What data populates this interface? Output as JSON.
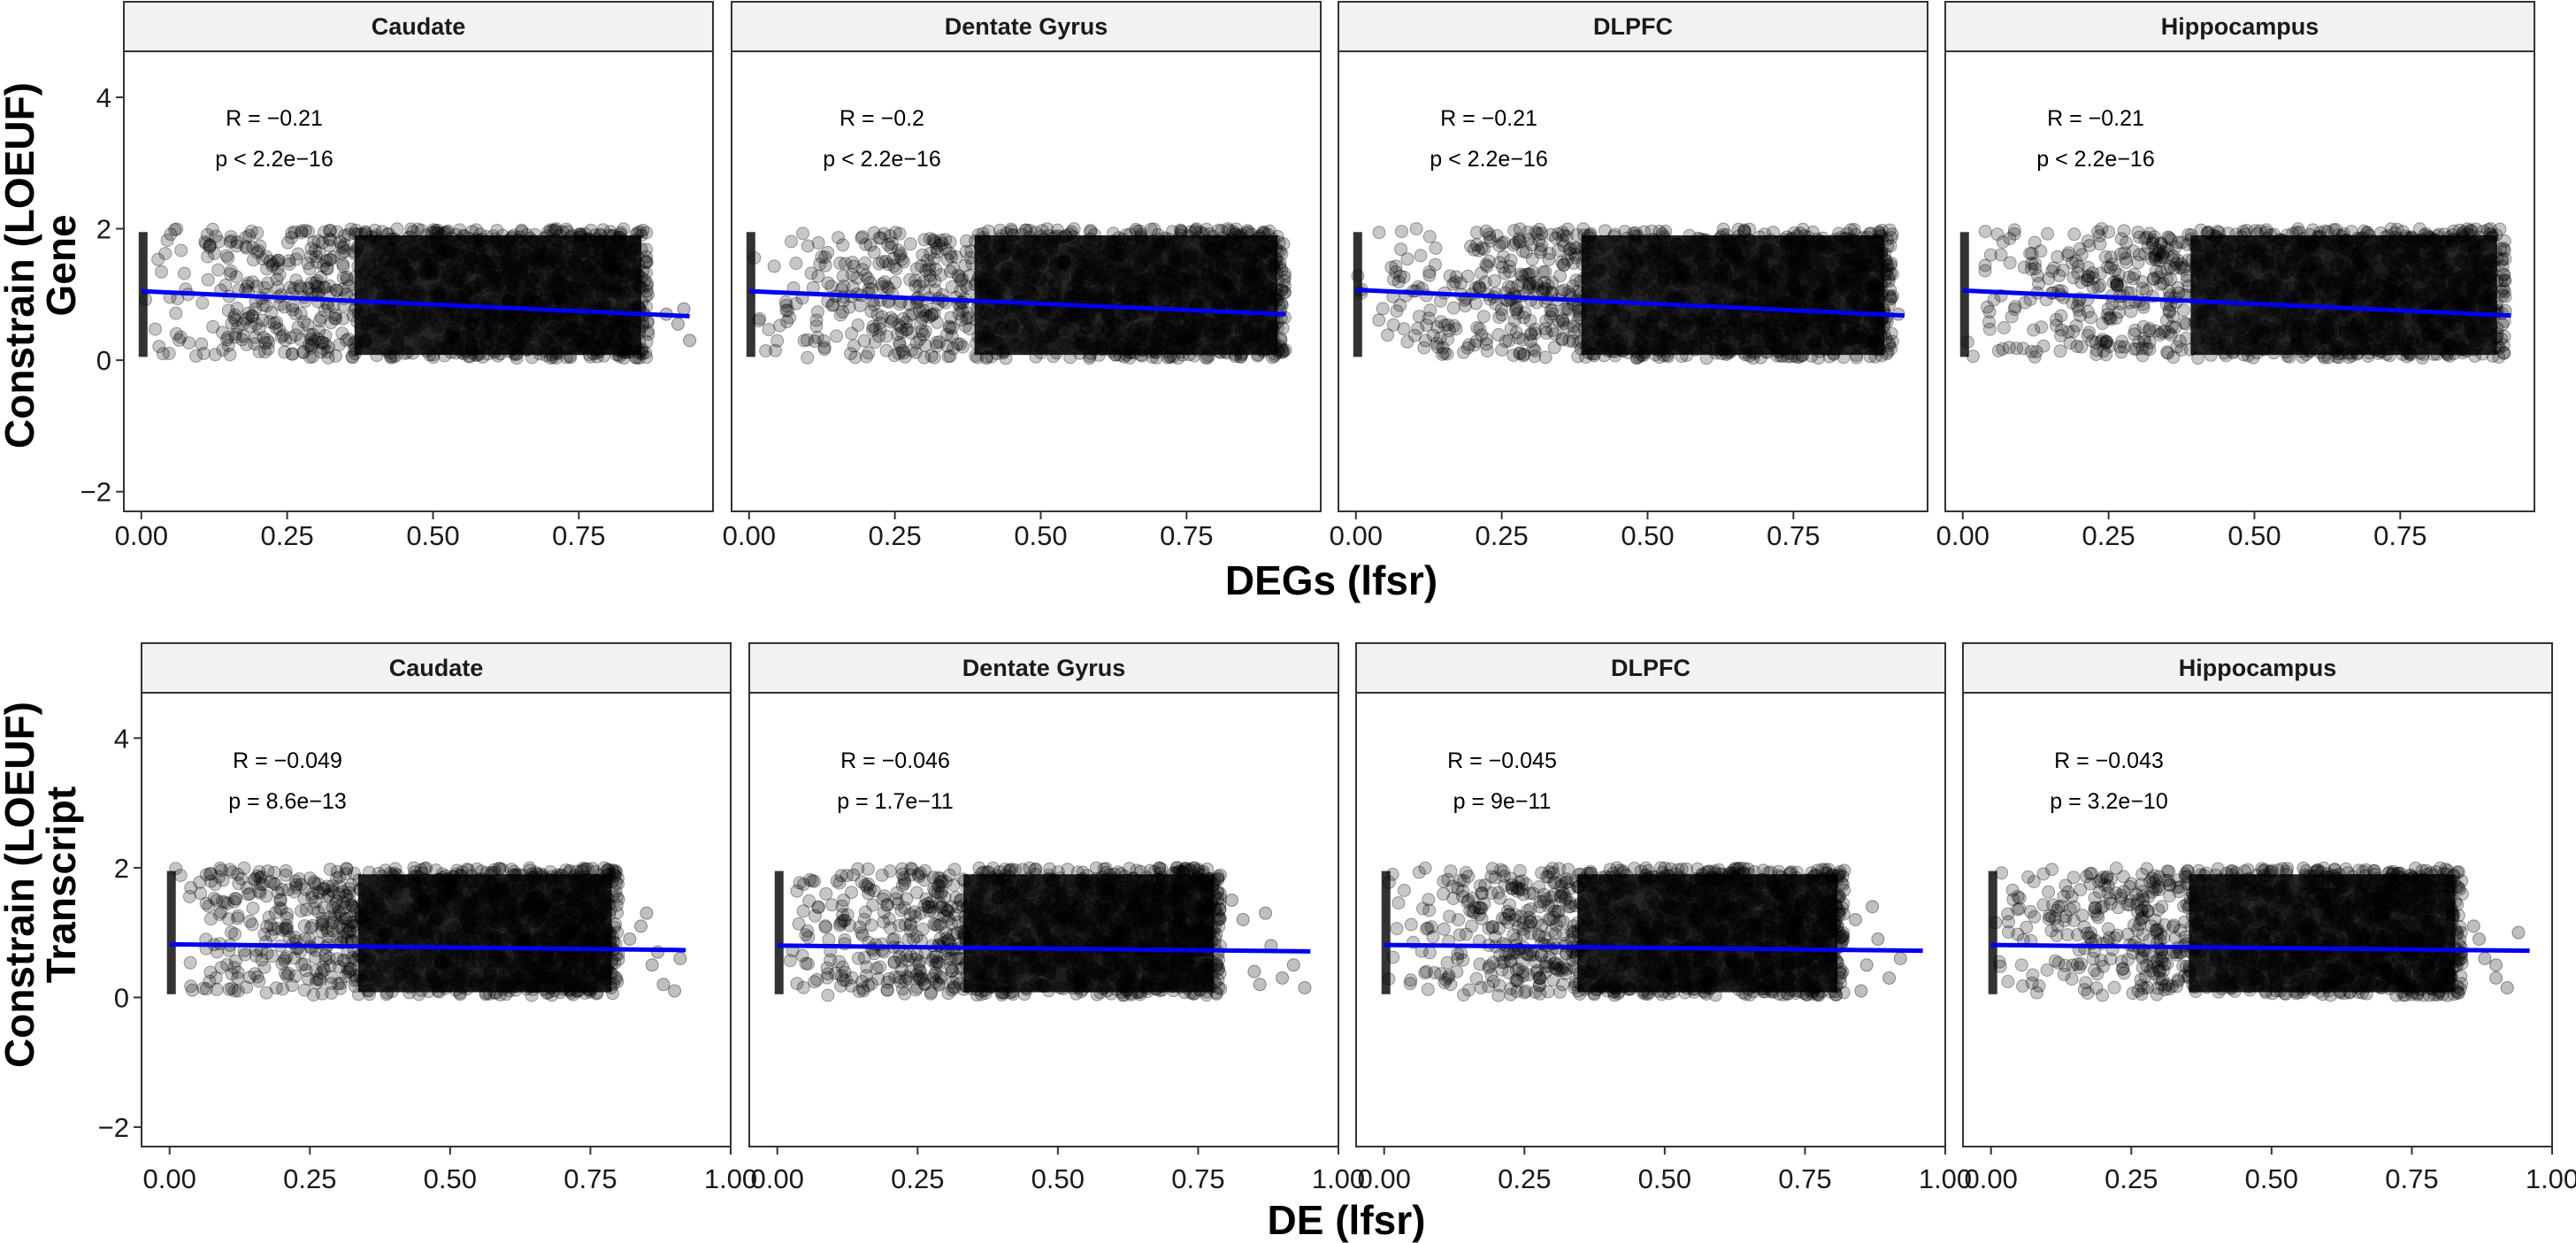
{
  "chart_data": {
    "type": "scatter",
    "panels": [
      {
        "row_label": "Gene",
        "xlabel": "DEGs (lfsr)",
        "ylabel": "Constrain (LOEUF)",
        "xlim": [
          -0.03,
          0.98
        ],
        "ylim": [
          -2.3,
          4.7
        ],
        "x_ticks": [
          "0.00",
          "0.25",
          "0.50",
          "0.75"
        ],
        "y_ticks": [
          "−2",
          "0",
          "2",
          "4"
        ],
        "facets": [
          {
            "title": "Caudate",
            "R": "R = −0.21",
            "p": "p < 2.2e−16",
            "x_max": 0.87,
            "trend": {
              "x0": 0.0,
              "y0": 1.05,
              "x1": 0.94,
              "y1": 0.67
            },
            "outliers": [
              [
                0.9,
                0.7
              ],
              [
                0.92,
                0.55
              ],
              [
                0.94,
                0.3
              ],
              [
                0.93,
                0.78
              ]
            ]
          },
          {
            "title": "Dentate Gyrus",
            "R": "R = −0.2",
            "p": "p < 2.2e−16",
            "x_max": 0.92,
            "trend": {
              "x0": 0.0,
              "y0": 1.05,
              "x1": 0.92,
              "y1": 0.7
            },
            "outliers": []
          },
          {
            "title": "DLPFC",
            "R": "R = −0.21",
            "p": "p < 2.2e−16",
            "x_max": 0.92,
            "trend": {
              "x0": 0.0,
              "y0": 1.07,
              "x1": 0.94,
              "y1": 0.68
            },
            "outliers": [
              [
                0.93,
                0.7
              ]
            ]
          },
          {
            "title": "Hippocampus",
            "R": "R = −0.21",
            "p": "p < 2.2e−16",
            "x_max": 0.93,
            "trend": {
              "x0": 0.0,
              "y0": 1.06,
              "x1": 0.94,
              "y1": 0.68
            },
            "outliers": [
              [
                0.93,
                0.75
              ]
            ]
          }
        ]
      },
      {
        "row_label": "Transcript",
        "xlabel": "DE (lfsr)",
        "ylabel": "Constrain (LOEUF)",
        "xlim": [
          -0.05,
          1.0
        ],
        "ylim": [
          -2.3,
          4.7
        ],
        "x_ticks": [
          "0.00",
          "0.25",
          "0.50",
          "0.75",
          "1.00"
        ],
        "y_ticks": [
          "−2",
          "0",
          "2",
          "4"
        ],
        "facets": [
          {
            "title": "Caudate",
            "R": "R = −0.049",
            "p": "p = 8.6e−13",
            "x_max": 0.8,
            "trend": {
              "x0": 0.0,
              "y0": 0.82,
              "x1": 0.92,
              "y1": 0.73
            },
            "outliers": [
              [
                0.82,
                0.9
              ],
              [
                0.84,
                1.1
              ],
              [
                0.86,
                0.5
              ],
              [
                0.88,
                0.2
              ],
              [
                0.9,
                0.1
              ],
              [
                0.91,
                0.6
              ],
              [
                0.85,
                1.3
              ],
              [
                0.87,
                0.7
              ]
            ]
          },
          {
            "title": "Dentate Gyrus",
            "R": "R = −0.046",
            "p": "p = 1.7e−11",
            "x_max": 0.79,
            "trend": {
              "x0": 0.0,
              "y0": 0.8,
              "x1": 0.95,
              "y1": 0.71
            },
            "outliers": [
              [
                0.81,
                1.5
              ],
              [
                0.83,
                1.2
              ],
              [
                0.85,
                0.4
              ],
              [
                0.87,
                1.3
              ],
              [
                0.9,
                0.3
              ],
              [
                0.92,
                0.5
              ],
              [
                0.94,
                0.15
              ],
              [
                0.88,
                0.8
              ],
              [
                0.86,
                0.2
              ]
            ]
          },
          {
            "title": "DLPFC",
            "R": "R = −0.045",
            "p": "p = 9e−11",
            "x_max": 0.82,
            "trend": {
              "x0": 0.0,
              "y0": 0.81,
              "x1": 0.96,
              "y1": 0.72
            },
            "outliers": [
              [
                0.84,
                1.2
              ],
              [
                0.86,
                0.5
              ],
              [
                0.88,
                0.9
              ],
              [
                0.9,
                0.3
              ],
              [
                0.92,
                0.6
              ],
              [
                0.85,
                0.1
              ],
              [
                0.87,
                1.4
              ]
            ]
          },
          {
            "title": "Hippocampus",
            "R": "R = −0.043",
            "p": "p = 3.2e−10",
            "x_max": 0.84,
            "trend": {
              "x0": 0.0,
              "y0": 0.81,
              "x1": 0.96,
              "y1": 0.72
            },
            "outliers": [
              [
                0.86,
                1.1
              ],
              [
                0.88,
                0.6
              ],
              [
                0.9,
                0.3
              ],
              [
                0.92,
                0.15
              ],
              [
                0.94,
                1.0
              ],
              [
                0.87,
                0.9
              ],
              [
                0.9,
                0.5
              ]
            ]
          }
        ]
      }
    ],
    "colors": {
      "points": "#000000",
      "trend": "#0000ee",
      "strip_bg": "#f2f2f2"
    }
  }
}
